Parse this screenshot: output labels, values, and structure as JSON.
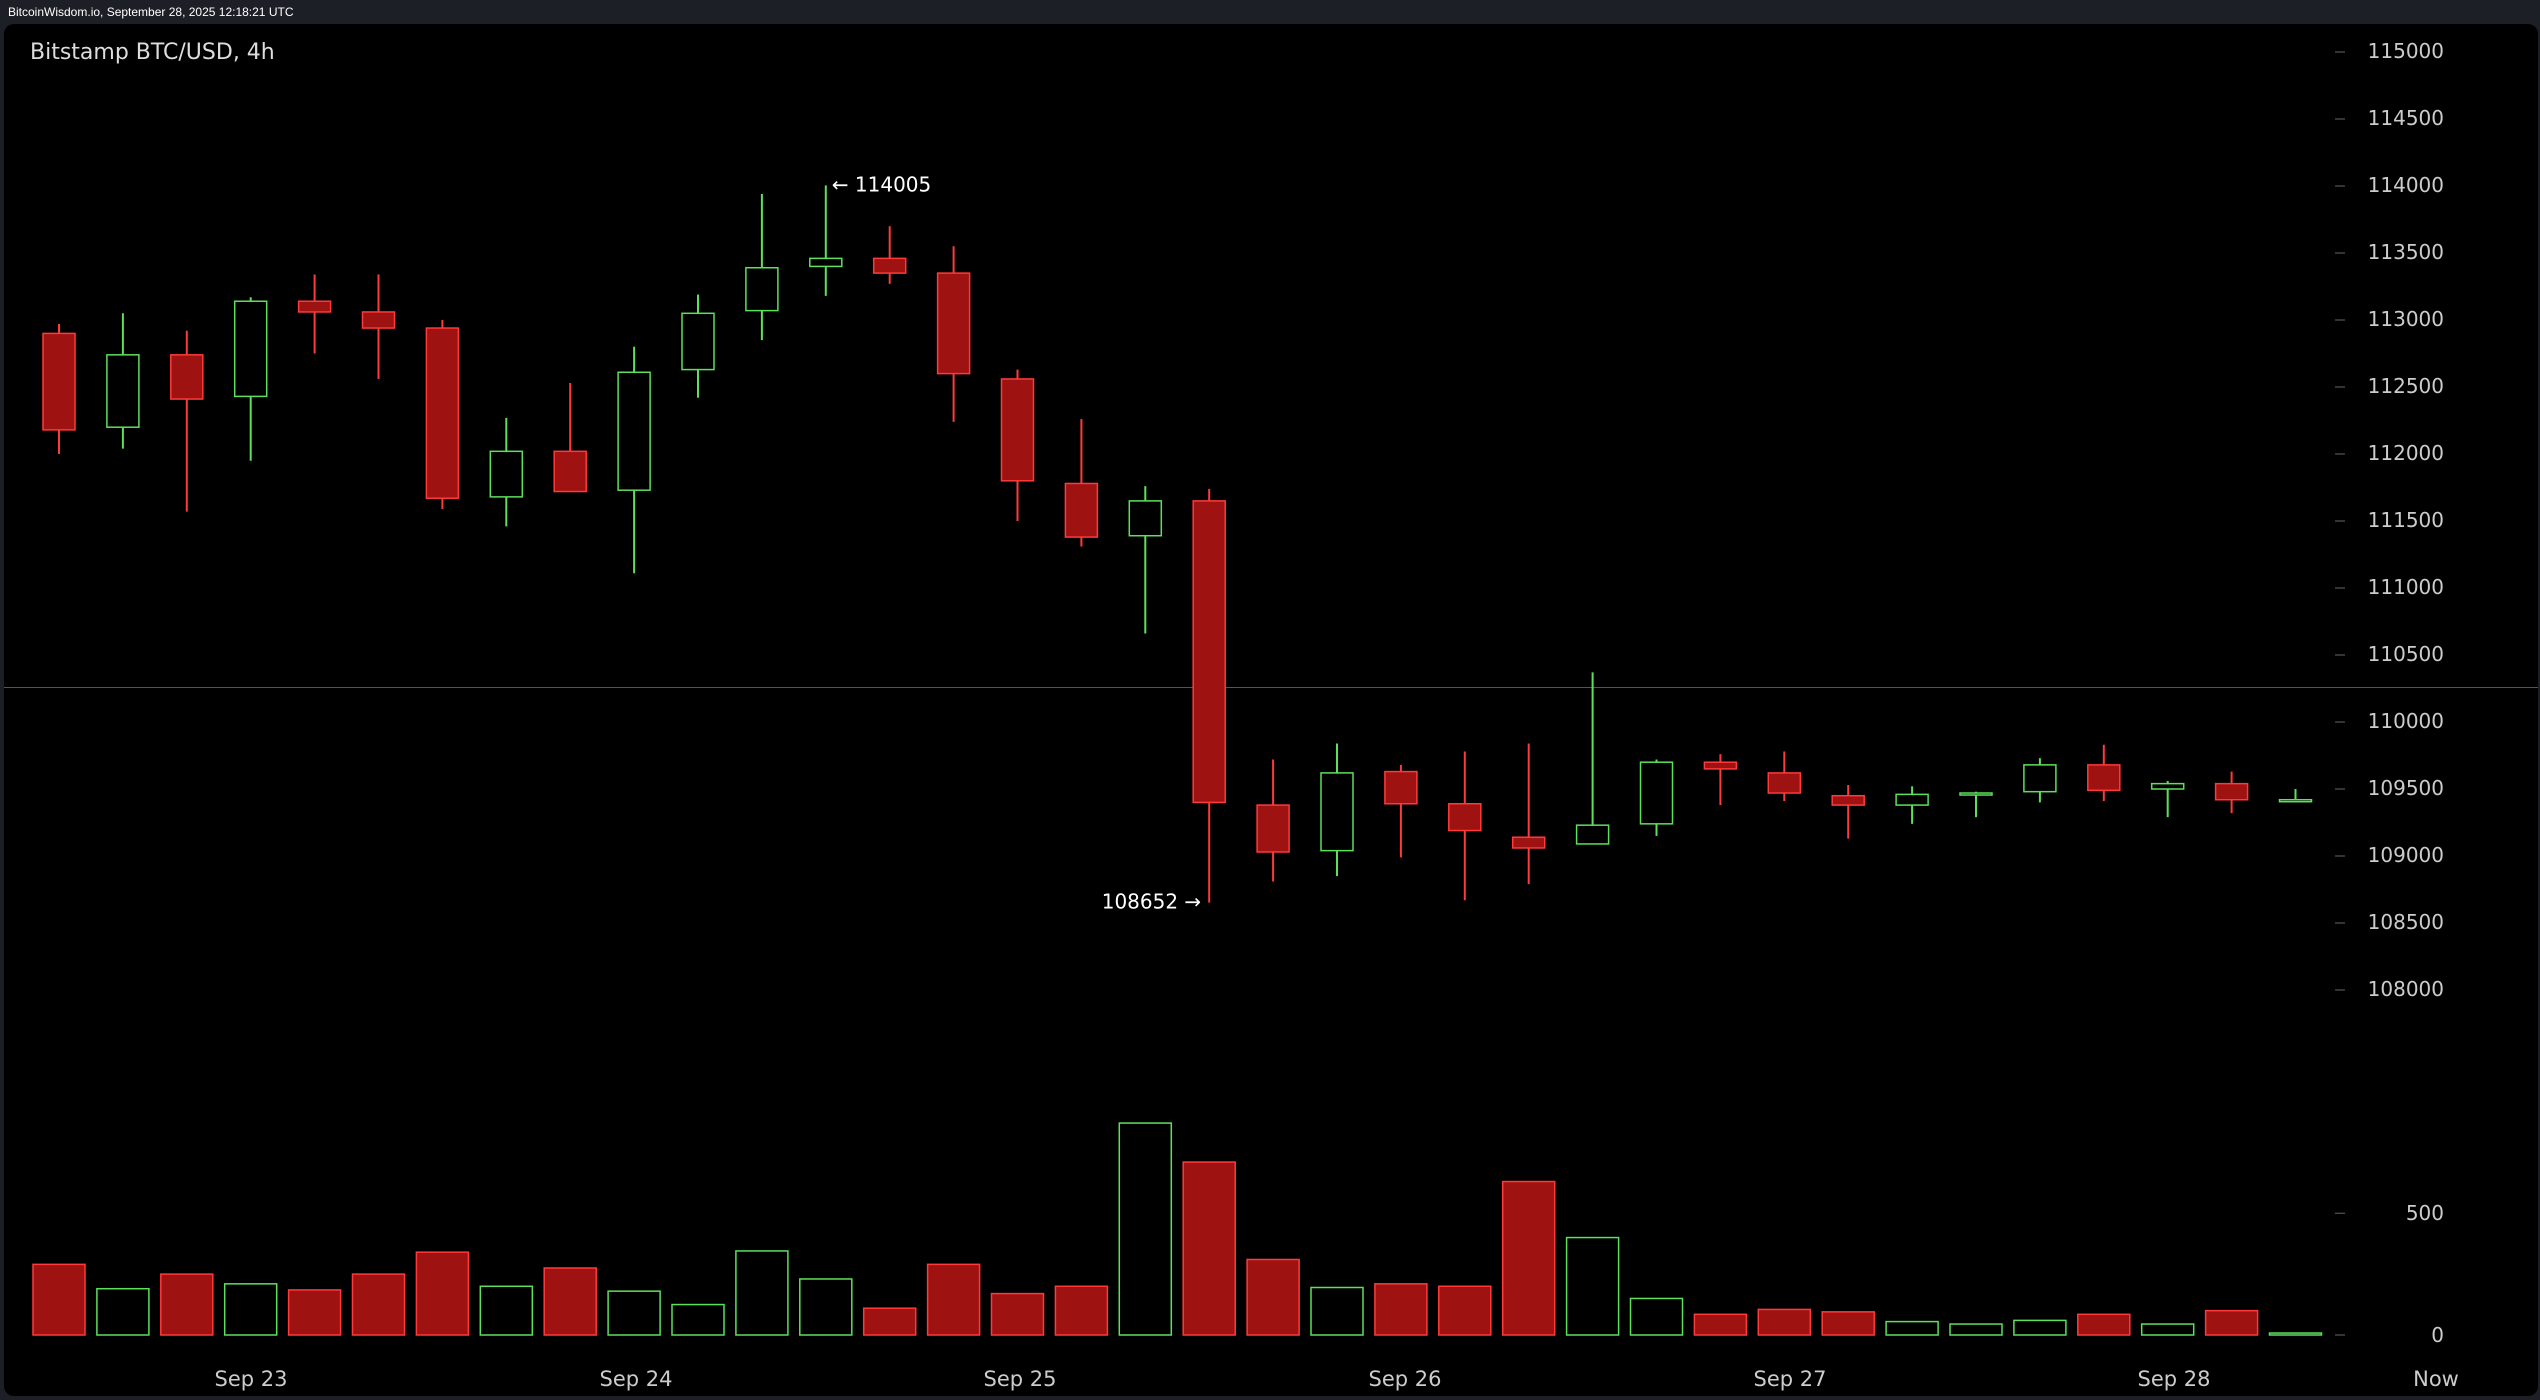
{
  "header": {
    "site_stamp": "BitcoinWisdom.io, September 28, 2025 12:18:21 UTC"
  },
  "chart_data": {
    "type": "candlestick",
    "title": "Bitstamp BTC/USD, 4h",
    "y_ticks": [
      115000,
      114500,
      114000,
      113500,
      113000,
      112500,
      112000,
      111500,
      111000,
      110500,
      110000,
      109500,
      109000,
      108500,
      108000
    ],
    "volume_ticks": [
      500,
      0
    ],
    "x_labels": [
      "Sep 23",
      "Sep 24",
      "Sep 25",
      "Sep 26",
      "Sep 27",
      "Sep 28",
      "Now"
    ],
    "annotations": {
      "high": "← 114005",
      "low": "108652 →"
    },
    "colors": {
      "up": "#5de05a",
      "down": "#9e1212",
      "down_border": "#ff3a3a",
      "background": "#000000",
      "axis_text": "#cccccc"
    },
    "candles": [
      {
        "o": 112900,
        "h": 112970,
        "l": 112000,
        "c": 112180,
        "v": 290
      },
      {
        "o": 112200,
        "h": 113050,
        "l": 112040,
        "c": 112740,
        "v": 190
      },
      {
        "o": 112740,
        "h": 112920,
        "l": 111570,
        "c": 112410,
        "v": 250
      },
      {
        "o": 112430,
        "h": 113170,
        "l": 111950,
        "c": 113140,
        "v": 210
      },
      {
        "o": 113140,
        "h": 113340,
        "l": 112750,
        "c": 113060,
        "v": 185
      },
      {
        "o": 113060,
        "h": 113340,
        "l": 112560,
        "c": 112940,
        "v": 250
      },
      {
        "o": 112940,
        "h": 113000,
        "l": 111590,
        "c": 111670,
        "v": 340
      },
      {
        "o": 111680,
        "h": 112270,
        "l": 111460,
        "c": 112020,
        "v": 200
      },
      {
        "o": 112020,
        "h": 112530,
        "l": 111720,
        "c": 111720,
        "v": 275
      },
      {
        "o": 111730,
        "h": 112800,
        "l": 111110,
        "c": 112610,
        "v": 180
      },
      {
        "o": 112630,
        "h": 113190,
        "l": 112420,
        "c": 113050,
        "v": 125
      },
      {
        "o": 113070,
        "h": 113940,
        "l": 112850,
        "c": 113390,
        "v": 345
      },
      {
        "o": 113400,
        "h": 114005,
        "l": 113180,
        "c": 113460,
        "v": 230
      },
      {
        "o": 113460,
        "h": 113700,
        "l": 113270,
        "c": 113350,
        "v": 110
      },
      {
        "o": 113350,
        "h": 113550,
        "l": 112240,
        "c": 112600,
        "v": 290
      },
      {
        "o": 112560,
        "h": 112630,
        "l": 111500,
        "c": 111800,
        "v": 170
      },
      {
        "o": 111780,
        "h": 112260,
        "l": 111310,
        "c": 111380,
        "v": 200
      },
      {
        "o": 111390,
        "h": 111760,
        "l": 110660,
        "c": 111650,
        "v": 870
      },
      {
        "o": 111650,
        "h": 111740,
        "l": 108652,
        "c": 109400,
        "v": 710
      },
      {
        "o": 109380,
        "h": 109720,
        "l": 108810,
        "c": 109030,
        "v": 310
      },
      {
        "o": 109040,
        "h": 109840,
        "l": 108850,
        "c": 109620,
        "v": 195
      },
      {
        "o": 109630,
        "h": 109680,
        "l": 108990,
        "c": 109390,
        "v": 210
      },
      {
        "o": 109390,
        "h": 109780,
        "l": 108670,
        "c": 109190,
        "v": 200
      },
      {
        "o": 109140,
        "h": 109840,
        "l": 108790,
        "c": 109060,
        "v": 630
      },
      {
        "o": 109090,
        "h": 110370,
        "l": 109090,
        "c": 109230,
        "v": 400
      },
      {
        "o": 109240,
        "h": 109720,
        "l": 109150,
        "c": 109700,
        "v": 150
      },
      {
        "o": 109700,
        "h": 109760,
        "l": 109380,
        "c": 109650,
        "v": 85
      },
      {
        "o": 109620,
        "h": 109780,
        "l": 109410,
        "c": 109470,
        "v": 105
      },
      {
        "o": 109450,
        "h": 109530,
        "l": 109130,
        "c": 109380,
        "v": 95
      },
      {
        "o": 109380,
        "h": 109520,
        "l": 109240,
        "c": 109460,
        "v": 55
      },
      {
        "o": 109460,
        "h": 109480,
        "l": 109290,
        "c": 109470,
        "v": 45
      },
      {
        "o": 109480,
        "h": 109730,
        "l": 109400,
        "c": 109680,
        "v": 60
      },
      {
        "o": 109680,
        "h": 109830,
        "l": 109410,
        "c": 109490,
        "v": 85
      },
      {
        "o": 109500,
        "h": 109560,
        "l": 109290,
        "c": 109540,
        "v": 45
      },
      {
        "o": 109540,
        "h": 109630,
        "l": 109320,
        "c": 109420,
        "v": 100
      },
      {
        "o": 109410,
        "h": 109500,
        "l": 109400,
        "c": 109420,
        "v": 8
      }
    ]
  }
}
